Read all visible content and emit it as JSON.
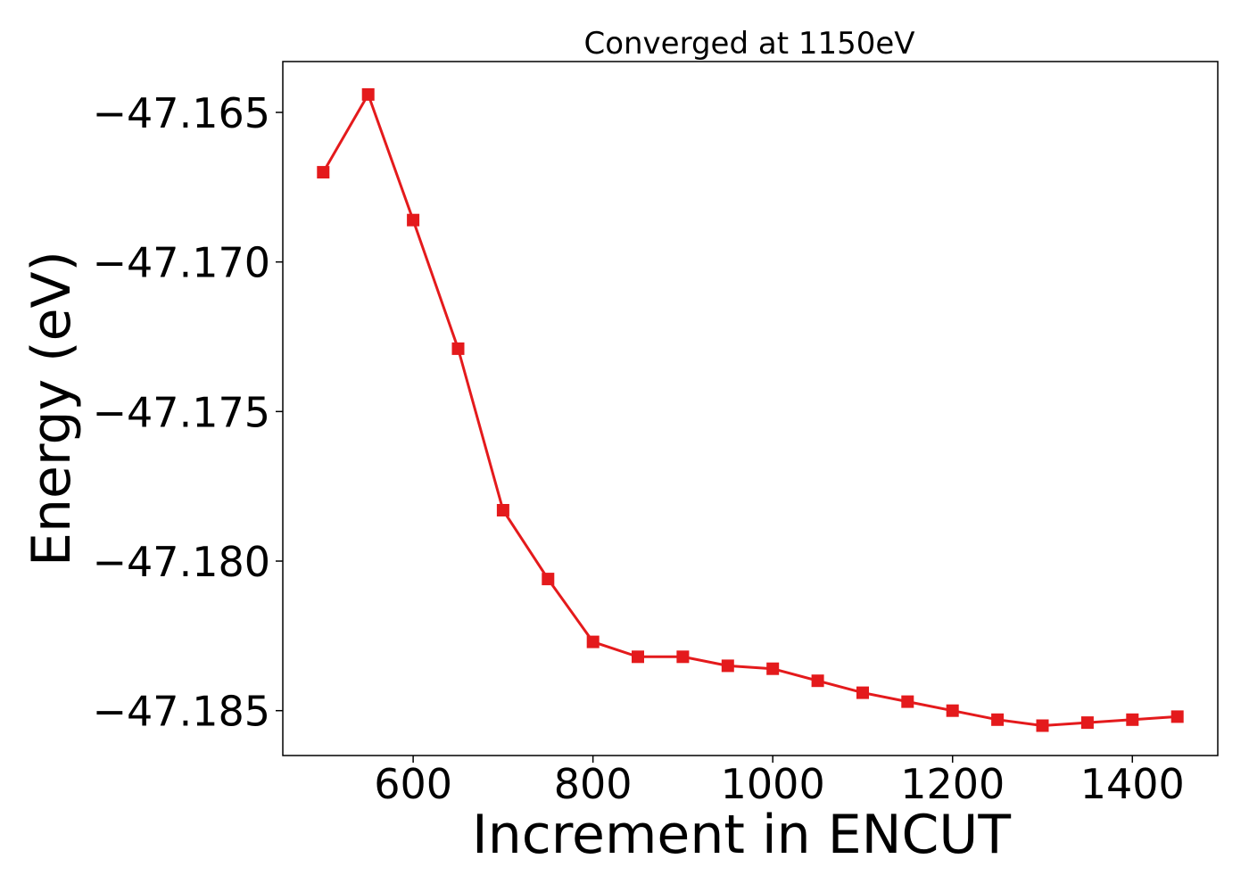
{
  "chart_data": {
    "type": "line",
    "title": "Converged at 1150eV",
    "xlabel": "Increment in ENCUT",
    "ylabel": "Energy (eV)",
    "xlim": [
      455,
      1495
    ],
    "ylim": [
      -47.1865,
      -47.1633
    ],
    "x_ticks": [
      600,
      800,
      1000,
      1200,
      1400
    ],
    "x_tick_labels": [
      "600",
      "800",
      "1000",
      "1200",
      "1400"
    ],
    "y_ticks": [
      -47.165,
      -47.17,
      -47.175,
      -47.18,
      -47.185
    ],
    "y_tick_labels": [
      "−47.165",
      "−47.170",
      "−47.175",
      "−47.180",
      "−47.185"
    ],
    "grid": false,
    "series": [
      {
        "color": "#e41a1c",
        "marker": "square",
        "x": [
          500,
          550,
          600,
          650,
          700,
          750,
          800,
          850,
          900,
          950,
          1000,
          1050,
          1100,
          1150,
          1200,
          1250,
          1300,
          1350,
          1400,
          1450
        ],
        "y": [
          -47.167,
          -47.1644,
          -47.1686,
          -47.1729,
          -47.1783,
          -47.1806,
          -47.1827,
          -47.1832,
          -47.1832,
          -47.1835,
          -47.1836,
          -47.184,
          -47.1844,
          -47.1847,
          -47.185,
          -47.1853,
          -47.1855,
          -47.1854,
          -47.1853,
          -47.1852
        ]
      }
    ]
  }
}
